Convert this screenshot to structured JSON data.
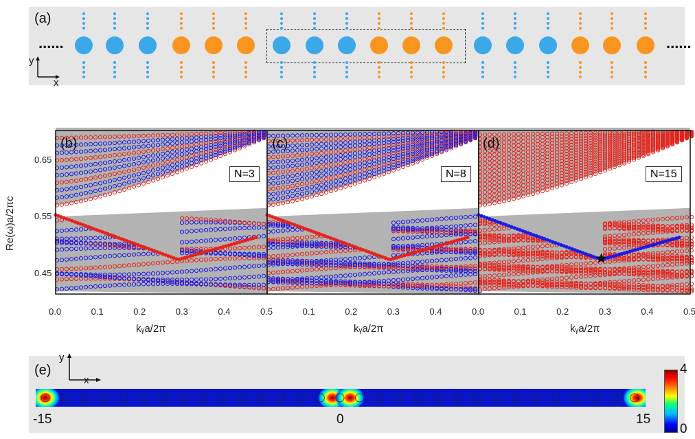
{
  "panel_a": {
    "label": "(a)",
    "ellipsis_left": "......",
    "ellipsis_right": "......",
    "axis_y": "y",
    "axis_x": "x",
    "site_colors": [
      "blue",
      "blue",
      "blue",
      "orange",
      "orange",
      "orange",
      "blue",
      "blue",
      "blue",
      "orange",
      "orange",
      "orange",
      "blue",
      "blue",
      "blue",
      "orange",
      "orange",
      "orange"
    ],
    "color_blue": "#3aa8e9",
    "color_orange": "#f7951f"
  },
  "bands": {
    "ylabel": "Re(ω)a/2πc",
    "y_ticks": [
      "0.65",
      "0.55",
      "0.45"
    ],
    "x_ticks": [
      "0.0",
      "0.1",
      "0.2",
      "0.3",
      "0.4",
      "0.5"
    ],
    "x_ticks_mid": [
      "0.0",
      "0.1",
      "0.2",
      "0.3",
      "0.4",
      "0.5"
    ],
    "xlabel": "kᵧa/2π",
    "panels": [
      {
        "label": "(b)",
        "n_label": "N=3"
      },
      {
        "label": "(c)",
        "n_label": "N=8"
      },
      {
        "label": "(d)",
        "n_label": "N=15"
      }
    ],
    "color_bulk": "#b3b3b3",
    "color_red": "#e8221a",
    "color_blue": "#1a1ae8",
    "star_marker": "star-icon"
  },
  "panel_e": {
    "label": "(e)",
    "axis_y": "y",
    "axis_x": "x",
    "pos_left": "-15",
    "pos_mid": "0",
    "pos_right": "15",
    "cbar_max": "4",
    "cbar_min": "0"
  }
}
